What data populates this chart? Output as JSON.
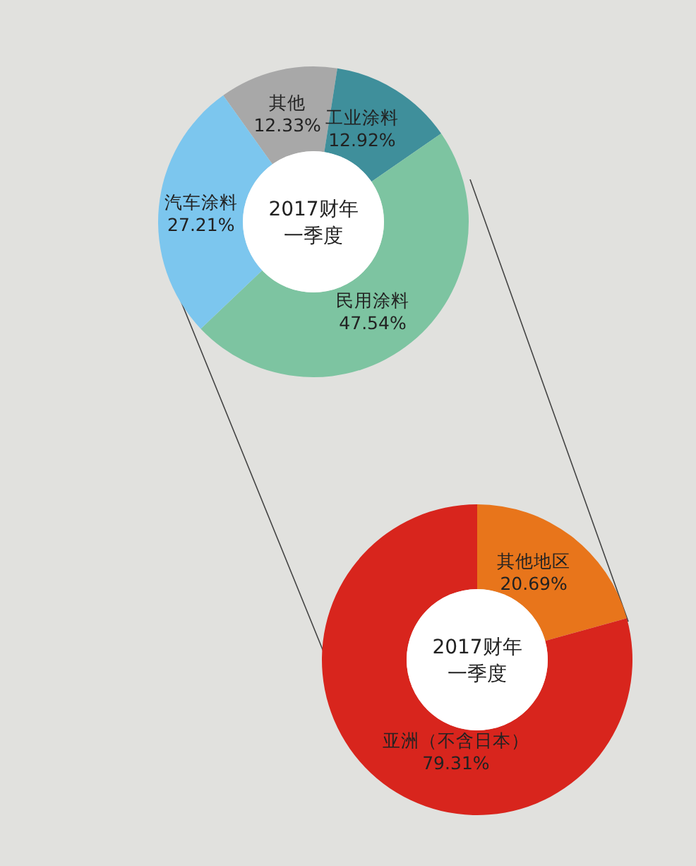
{
  "chart_data": [
    {
      "type": "donut",
      "title": "2017财年一季度",
      "categories": [
        "其他",
        "工业涂料",
        "民用涂料",
        "汽车涂料"
      ],
      "values": [
        12.33,
        12.92,
        47.54,
        27.21
      ],
      "value_labels": [
        "12.33%",
        "12.92%",
        "47.54%",
        "27.21%"
      ],
      "colors": [
        "#a8a8a8",
        "#3f8f9b",
        "#7dc4a1",
        "#7cc6ee"
      ]
    },
    {
      "type": "donut",
      "title": "2017财年一季度",
      "categories": [
        "其他地区",
        "亚洲（不含日本）"
      ],
      "values": [
        20.69,
        79.31
      ],
      "value_labels": [
        "20.69%",
        "79.31%"
      ],
      "colors": [
        "#e8751b",
        "#d8251d"
      ]
    }
  ]
}
